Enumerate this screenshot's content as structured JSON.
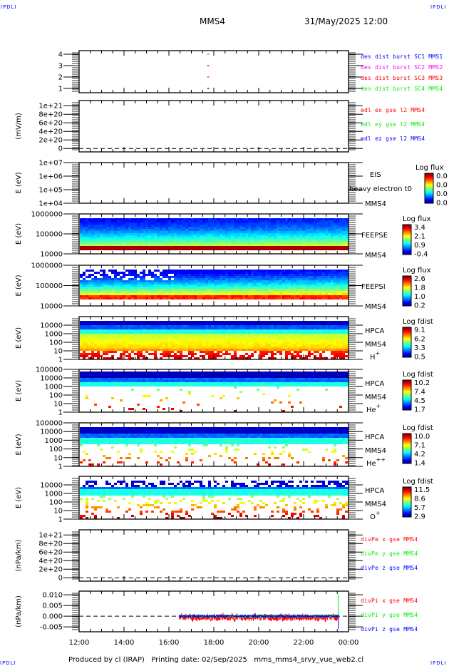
{
  "header": {
    "corner_tag": "IPDLI",
    "title": "MMS4",
    "datetime": "31/May/2025 12:00"
  },
  "footer": {
    "text": "Produced by cl (IRAP)   Printing date: 02/Sep/2025   mms_mms4_srvy_vue_web2.cl"
  },
  "xaxis": {
    "ticks": [
      "12:00",
      "14:00",
      "16:00",
      "18:00",
      "20:00",
      "22:00",
      "00:00"
    ],
    "range_hours": [
      12,
      24
    ]
  },
  "colors": {
    "red": "#ff0000",
    "green": "#00ee00",
    "blue": "#0000ff",
    "magenta": "#ff00ff"
  },
  "chart_data": [
    {
      "type": "scatter",
      "ylabel": "",
      "yscale": "linear",
      "ylim": [
        0.625,
        4.31
      ],
      "yticks": [
        {
          "label": "4",
          "v": 4
        },
        {
          "label": "3",
          "v": 3
        },
        {
          "label": "2",
          "v": 2
        },
        {
          "label": "1",
          "v": 1
        }
      ],
      "legend": [
        {
          "text": "des dist burst SC1 MMS1",
          "color": "#0000ff"
        },
        {
          "text": "des dist burst SC2 MMS2",
          "color": "#ff00ff"
        },
        {
          "text": "des dist burst SC3 MMS3",
          "color": "#ff0000"
        },
        {
          "text": "des dist burst SC4 MMS4",
          "color": "#00ee00"
        }
      ],
      "points": [
        {
          "t": 17.75,
          "v": 4,
          "color": "#00ee00"
        },
        {
          "t": 17.75,
          "v": 3,
          "color": "#ff0000"
        },
        {
          "t": 17.75,
          "v": 2,
          "color": "#ff00ff"
        },
        {
          "t": 17.75,
          "v": 1,
          "color": "#0000ff"
        }
      ]
    },
    {
      "type": "line",
      "ylabel": "(mV/m)",
      "yscale": "linear",
      "ylim": [
        -8e+19,
        1.12e+21
      ],
      "zero_line": true,
      "yticks": [
        {
          "label": "1e+21",
          "v": 1e+21
        },
        {
          "label": "8e+20",
          "v": 8e+20
        },
        {
          "label": "6e+20",
          "v": 6e+20
        },
        {
          "label": "4e+20",
          "v": 4e+20
        },
        {
          "label": "2e+20",
          "v": 2e+20
        },
        {
          "label": "0",
          "v": 0
        }
      ],
      "legend": [
        {
          "text": "edl ex gse l2 MMS4",
          "color": "#ff0000"
        },
        {
          "text": "edl ey gse l2 MMS4",
          "color": "#00ee00"
        },
        {
          "text": "edl ez gse l2 MMS4",
          "color": "#0000ff"
        }
      ]
    },
    {
      "type": "heatmap",
      "ylabel": "E (eV)",
      "yscale": "log",
      "ylim": [
        10000.0,
        10000000.0
      ],
      "profile": "empty",
      "yticks": [
        {
          "label": "1e+07",
          "v": 10000000.0
        },
        {
          "label": "1e+06",
          "v": 1000000.0
        },
        {
          "label": "1e+05",
          "v": 100000.0
        },
        {
          "label": "1e+04",
          "v": 10000.0
        }
      ],
      "right_labels": [
        {
          "text": "EIS"
        },
        {
          "text": "heavy electron t0"
        },
        {
          "text": "MMS4"
        }
      ],
      "colorbar": {
        "title": "Log flux",
        "labels": [
          "0.0",
          "0.0",
          "0.0",
          "0.0"
        ]
      }
    },
    {
      "type": "heatmap",
      "ylabel": "E (eV)",
      "yscale": "log",
      "ylim": [
        10000.0,
        1000000.0
      ],
      "profile": "feepse",
      "yticks": [
        {
          "label": "1000000",
          "v": 1000000.0
        },
        {
          "label": "100000",
          "v": 100000.0
        },
        {
          "label": "10000",
          "v": 10000.0
        }
      ],
      "right_labels": [
        {
          "text": "FEEPSE"
        },
        {
          "text": "MMS4"
        }
      ],
      "colorbar": {
        "title": "Log flux",
        "labels": [
          "3.4",
          "2.1",
          "0.9",
          "-0.4"
        ]
      }
    },
    {
      "type": "heatmap",
      "ylabel": "E (eV)",
      "yscale": "log",
      "ylim": [
        10000.0,
        1000000.0
      ],
      "profile": "feepsi",
      "yticks": [
        {
          "label": "1000000",
          "v": 1000000.0
        },
        {
          "label": "100000",
          "v": 100000.0
        },
        {
          "label": "10000",
          "v": 10000.0
        }
      ],
      "right_labels": [
        {
          "text": "FEEPSI"
        },
        {
          "text": "MMS4"
        }
      ],
      "colorbar": {
        "title": "Log flux",
        "labels": [
          "2.6",
          "1.8",
          "1.0",
          "0.2"
        ]
      }
    },
    {
      "type": "heatmap",
      "ylabel": "E (eV)",
      "yscale": "log",
      "ylim": [
        1,
        100000.0
      ],
      "profile": "hplus",
      "yticks": [
        {
          "label": "10000",
          "v": 10000.0
        },
        {
          "label": "1000",
          "v": 1000.0
        },
        {
          "label": "100",
          "v": 100
        },
        {
          "label": "10",
          "v": 10
        },
        {
          "label": "1",
          "v": 1
        }
      ],
      "right_labels": [
        {
          "text": "HPCA"
        },
        {
          "text": "MMS4"
        }
      ],
      "species": {
        "base": "H",
        "sup": "+"
      },
      "colorbar": {
        "title": "Log fdist",
        "labels": [
          "9.1",
          "6.2",
          "3.3",
          "0.5"
        ]
      }
    },
    {
      "type": "heatmap",
      "ylabel": "E (eV)",
      "yscale": "log",
      "ylim": [
        1,
        100000.0
      ],
      "profile": "heplus",
      "yticks": [
        {
          "label": "100000",
          "v": 100000.0
        },
        {
          "label": "10000",
          "v": 10000.0
        },
        {
          "label": "1000",
          "v": 1000.0
        },
        {
          "label": "100",
          "v": 100
        },
        {
          "label": "10",
          "v": 10
        },
        {
          "label": "1",
          "v": 1
        }
      ],
      "right_labels": [
        {
          "text": "HPCA"
        },
        {
          "text": "MMS4"
        }
      ],
      "species": {
        "base": "He",
        "sup": "+"
      },
      "colorbar": {
        "title": "Log fdist",
        "labels": [
          "10.2",
          "7.4",
          "4.5",
          "1.7"
        ]
      }
    },
    {
      "type": "heatmap",
      "ylabel": "E (eV)",
      "yscale": "log",
      "ylim": [
        1,
        100000.0
      ],
      "profile": "heplusplus",
      "yticks": [
        {
          "label": "100000",
          "v": 100000.0
        },
        {
          "label": "10000",
          "v": 10000.0
        },
        {
          "label": "1000",
          "v": 1000.0
        },
        {
          "label": "100",
          "v": 100
        },
        {
          "label": "10",
          "v": 10
        },
        {
          "label": "1",
          "v": 1
        }
      ],
      "right_labels": [
        {
          "text": "HPCA"
        },
        {
          "text": "MMS4"
        }
      ],
      "species": {
        "base": "He",
        "sup": "++"
      },
      "colorbar": {
        "title": "Log fdist",
        "labels": [
          "10.0",
          "7.1",
          "4.2",
          "1.4"
        ]
      }
    },
    {
      "type": "heatmap",
      "ylabel": "E (eV)",
      "yscale": "log",
      "ylim": [
        1,
        100000.0
      ],
      "profile": "oplus",
      "yticks": [
        {
          "label": "10000",
          "v": 10000.0
        },
        {
          "label": "1000",
          "v": 1000.0
        },
        {
          "label": "100",
          "v": 100
        },
        {
          "label": "10",
          "v": 10
        },
        {
          "label": "1",
          "v": 1
        }
      ],
      "right_labels": [
        {
          "text": "HPCA"
        },
        {
          "text": "MMS4"
        }
      ],
      "species": {
        "base": "O",
        "sup": "+"
      },
      "colorbar": {
        "title": "Log fdist",
        "labels": [
          "11.5",
          "8.6",
          "5.7",
          "2.9"
        ]
      }
    },
    {
      "type": "line",
      "ylabel": "(nPa/km)",
      "yscale": "linear",
      "ylim": [
        -8e+19,
        1.12e+21
      ],
      "zero_line": true,
      "yticks": [
        {
          "label": "1e+21",
          "v": 1e+21
        },
        {
          "label": "8e+20",
          "v": 8e+20
        },
        {
          "label": "6e+20",
          "v": 6e+20
        },
        {
          "label": "4e+20",
          "v": 4e+20
        },
        {
          "label": "2e+20",
          "v": 2e+20
        },
        {
          "label": "0",
          "v": 0
        }
      ],
      "legend": [
        {
          "text": "divPe x gse MMS4",
          "color": "#ff0000"
        },
        {
          "text": "divPe y gse MMS4",
          "color": "#00ee00"
        },
        {
          "text": "divPe z gse MMS4",
          "color": "#0000ff"
        }
      ]
    },
    {
      "type": "line",
      "ylabel": "(nPa/km)",
      "yscale": "linear",
      "ylim": [
        -0.0073,
        0.0117
      ],
      "zero_line": true,
      "yticks": [
        {
          "label": "0.010",
          "v": 0.01
        },
        {
          "label": "0.005",
          "v": 0.005
        },
        {
          "label": "0.000",
          "v": 0
        },
        {
          "label": "-0.005",
          "v": -0.005
        }
      ],
      "legend": [
        {
          "text": "divPi x gse MMS4",
          "color": "#ff0000"
        },
        {
          "text": "divPi y gse MMS4",
          "color": "#00ee00"
        },
        {
          "text": "divPi z gse MMS4",
          "color": "#0000ff"
        }
      ],
      "series": [
        {
          "name": "divPi x gse MMS4",
          "color": "#ff0000",
          "t_range": [
            16.45,
            23.55
          ],
          "amplitude": 0.0022,
          "bias": -0.0006
        },
        {
          "name": "divPi y gse MMS4",
          "color": "#00ee00",
          "t_range": [
            16.45,
            23.55
          ],
          "amplitude": 0.0008,
          "bias": 0,
          "spike": {
            "t": 23.55,
            "v": 0.0102
          }
        },
        {
          "name": "divPi z gse MMS4",
          "color": "#0000ff",
          "t_range": [
            16.45,
            23.55
          ],
          "amplitude": 0.0006,
          "bias": 0,
          "spike": {
            "t": 23.55,
            "v": -0.006
          }
        }
      ]
    }
  ]
}
